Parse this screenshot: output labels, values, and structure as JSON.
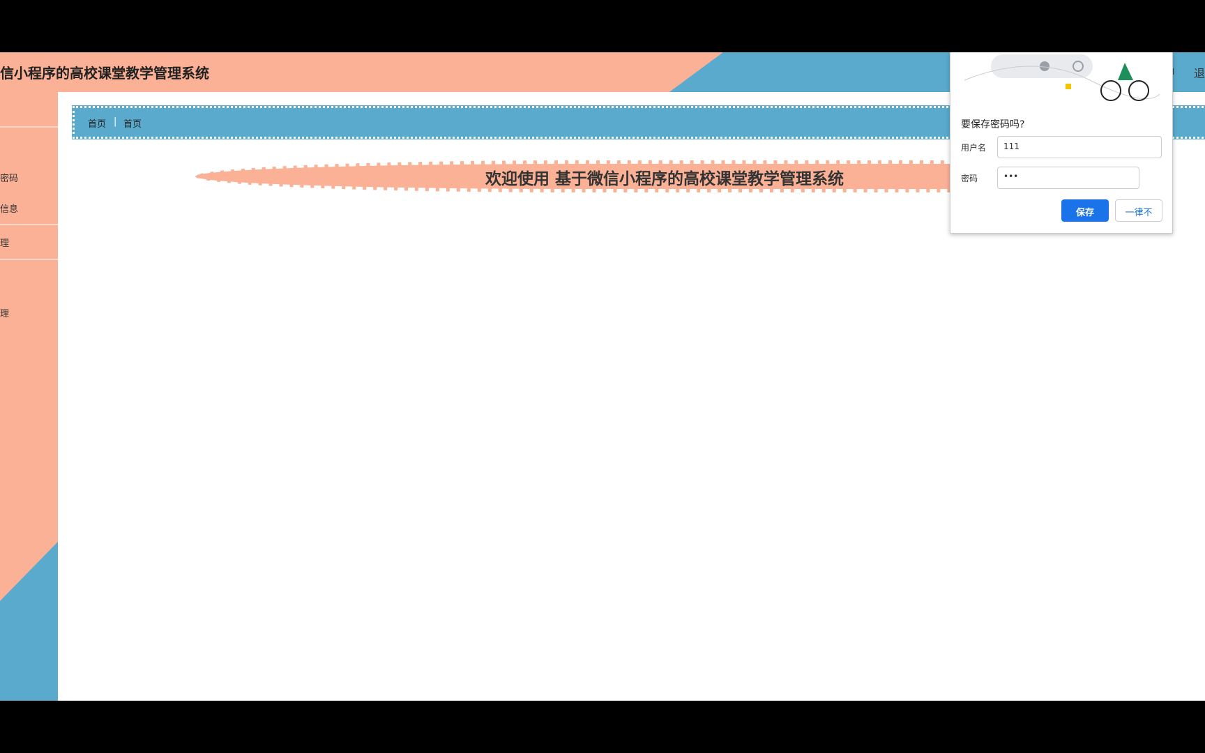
{
  "header": {
    "title": "信小程序的高校课堂教学管理系统",
    "right_items": [
      "ı",
      "退"
    ]
  },
  "sidebar": {
    "items": [
      "密码",
      "信息",
      "理",
      "理"
    ]
  },
  "breadcrumb": {
    "items": [
      "首页",
      "首页"
    ],
    "separator": "|"
  },
  "banner": {
    "text": "欢迎使用 基于微信小程序的高校课堂教学管理系统"
  },
  "dialog": {
    "title": "要保存密码吗?",
    "username_label": "用户名",
    "username_value": "111",
    "password_label": "密码",
    "password_value": "•••",
    "save": "保存",
    "never": "一律不"
  }
}
